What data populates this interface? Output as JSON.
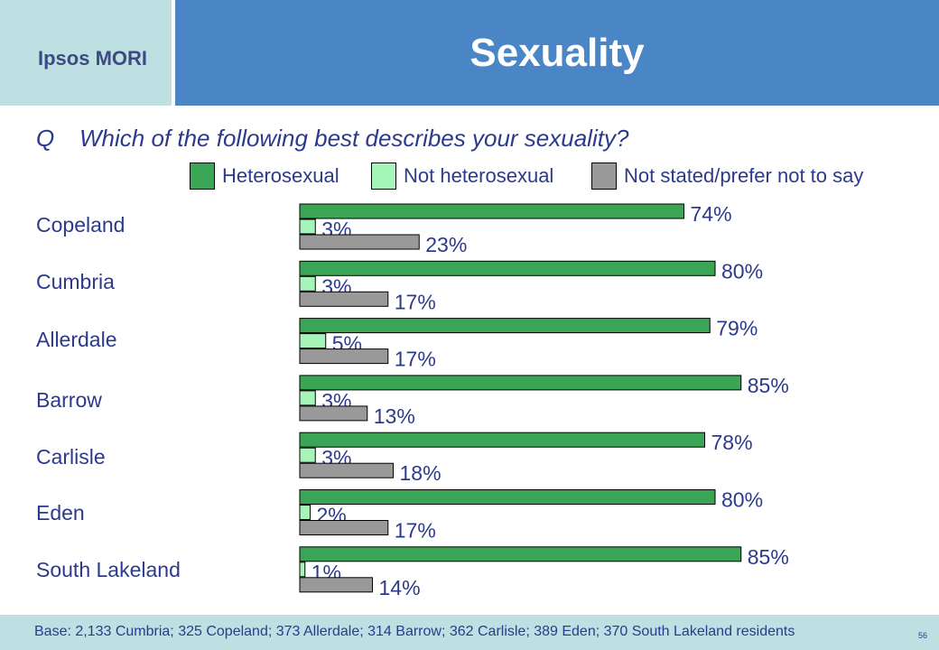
{
  "header": {
    "logo_text": "Ipsos MORI",
    "title": "Sexuality"
  },
  "question": {
    "prefix": "Q",
    "text": "Which of the following best describes your sexuality?"
  },
  "legend": [
    {
      "label": "Heterosexual",
      "color": "#3aa655"
    },
    {
      "label": "Not heterosexual",
      "color": "#a6f5b8"
    },
    {
      "label": "Not stated/prefer not to say",
      "color": "#999999"
    }
  ],
  "chart_data": {
    "type": "bar",
    "orientation": "horizontal",
    "title": "",
    "categories": [
      "Copeland",
      "Cumbria",
      "Allerdale",
      "Barrow",
      "Carlisle",
      "Eden",
      "South Lakeland"
    ],
    "series": [
      {
        "name": "Heterosexual",
        "values": [
          74,
          80,
          79,
          85,
          78,
          80,
          85
        ],
        "color": "#3aa655"
      },
      {
        "name": "Not heterosexual",
        "values": [
          3,
          3,
          5,
          3,
          3,
          2,
          1
        ],
        "color": "#a6f5b8"
      },
      {
        "name": "Not stated/prefer not to say",
        "values": [
          23,
          17,
          17,
          13,
          18,
          17,
          14
        ],
        "color": "#999999"
      }
    ],
    "value_suffix": "%",
    "xlim": [
      0,
      100
    ],
    "legend_position": "top",
    "grid": false
  },
  "footer": {
    "base_text": "Base: 2,133 Cumbria; 325 Copeland; 373 Allerdale; 314 Barrow; 362 Carlisle; 389 Eden; 370 South Lakeland residents",
    "page_number": "56"
  }
}
